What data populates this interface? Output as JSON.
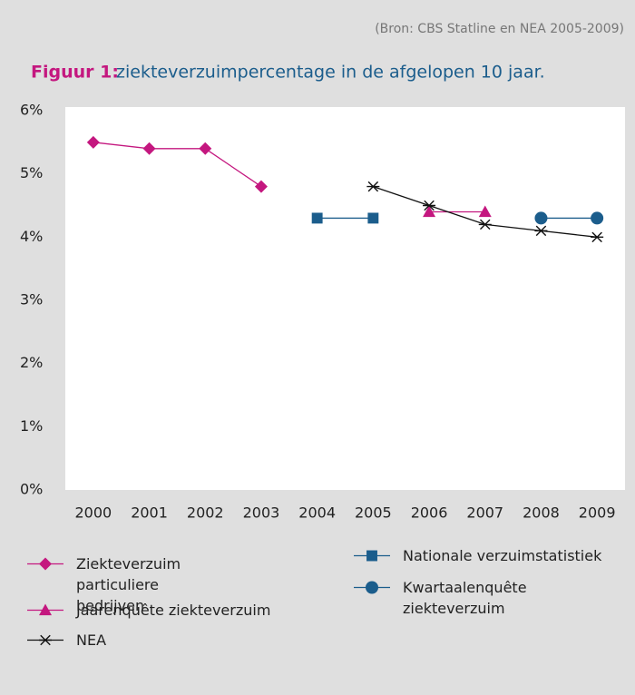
{
  "chart_data": {
    "type": "line",
    "source": "(Bron: CBS Statline en NEA 2005-2009)",
    "title_label": "Figuur 1:",
    "title": "ziekteverzuimpercentage in de afgelopen 10 jaar.",
    "categories": [
      "2000",
      "2001",
      "2002",
      "2003",
      "2004",
      "2005",
      "2006",
      "2007",
      "2008",
      "2009"
    ],
    "series": [
      {
        "name": "Ziekteverzuim particuliere bedrijven",
        "color": "#c4177f",
        "marker": "diamond",
        "values": [
          5.5,
          5.4,
          5.4,
          4.8,
          null,
          null,
          null,
          null,
          null,
          null
        ]
      },
      {
        "name": "Jaarenquête ziekteverzuim",
        "color": "#c4177f",
        "marker": "triangle",
        "values": [
          null,
          null,
          null,
          null,
          null,
          null,
          4.4,
          4.4,
          null,
          null
        ]
      },
      {
        "name": "NEA",
        "color": "#111111",
        "marker": "asterisk",
        "values": [
          null,
          null,
          null,
          null,
          null,
          4.8,
          4.5,
          4.2,
          4.1,
          4.0
        ]
      },
      {
        "name": "Nationale verzuimstatistiek",
        "color": "#1b5d8c",
        "marker": "square",
        "values": [
          null,
          null,
          null,
          null,
          4.3,
          4.3,
          null,
          null,
          null,
          null
        ]
      },
      {
        "name": "Kwartaalenquête ziekteverzuim",
        "color": "#1b5d8c",
        "marker": "circle",
        "values": [
          null,
          null,
          null,
          null,
          null,
          null,
          null,
          null,
          4.3,
          4.3
        ]
      }
    ],
    "ylim": [
      0,
      6
    ],
    "yticks": [
      {
        "value": 0,
        "label": "0%"
      },
      {
        "value": 1,
        "label": "1%"
      },
      {
        "value": 2,
        "label": "2%"
      },
      {
        "value": 3,
        "label": "3%"
      },
      {
        "value": 4,
        "label": "4%"
      },
      {
        "value": 5,
        "label": "5%"
      },
      {
        "value": 6,
        "label": "6%"
      }
    ],
    "grid": false
  }
}
